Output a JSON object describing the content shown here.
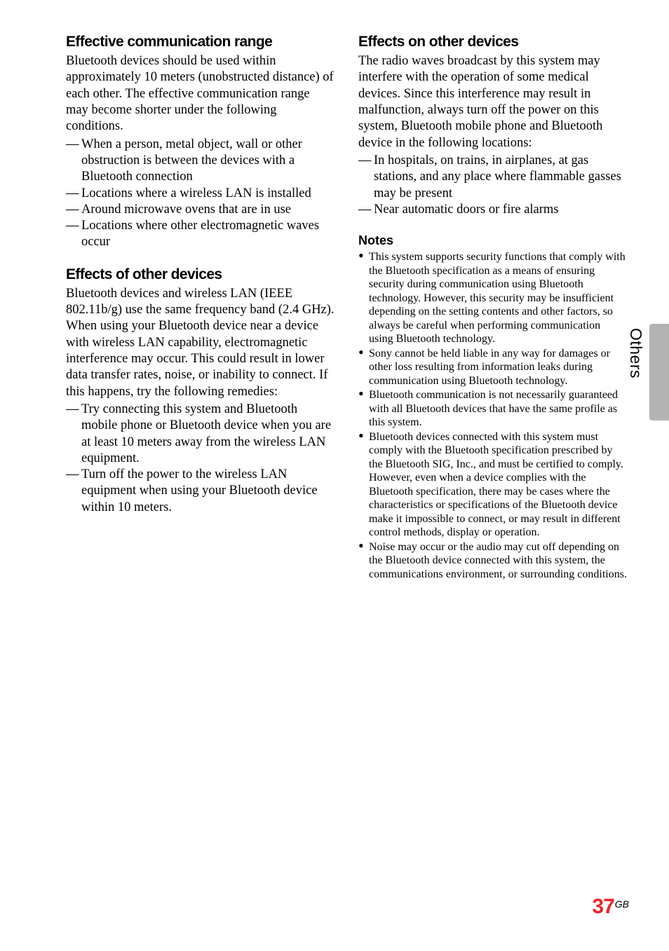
{
  "sideTab": {
    "label": "Others"
  },
  "pageNumber": {
    "num": "37",
    "suffix": "GB"
  },
  "left": {
    "s1": {
      "heading": "Effective communication range",
      "body": "Bluetooth devices should be used within approximately 10 meters (unobstructed distance) of each other. The effective communication range may become shorter under the following conditions.",
      "items": [
        "When a person, metal object, wall or other obstruction is between the devices with a Bluetooth connection",
        "Locations where a wireless LAN is installed",
        "Around microwave ovens that are in use",
        "Locations where other electromagnetic waves occur"
      ]
    },
    "s2": {
      "heading": "Effects of other devices",
      "body": "Bluetooth devices and wireless LAN (IEEE 802.11b/g) use the same frequency band (2.4 GHz). When using your Bluetooth device near a device with wireless LAN capability, electromagnetic interference may occur. This could result in lower data transfer rates, noise, or inability to connect. If this happens, try the following remedies:",
      "items": [
        "Try connecting this system and Bluetooth mobile phone or Bluetooth device when you are at least 10 meters away from the wireless LAN equipment.",
        "Turn off the power to the wireless LAN equipment when using your Bluetooth device within 10 meters."
      ]
    }
  },
  "right": {
    "s1": {
      "heading": "Effects on other devices",
      "body": "The radio waves broadcast by this system may interfere with the operation of some medical devices. Since this interference may result in malfunction, always turn off the power on this system, Bluetooth mobile phone and Bluetooth device in the following locations:",
      "items": [
        "In hospitals, on trains, in airplanes, at gas stations, and any place where flammable gasses may be present",
        "Near automatic doors or fire alarms"
      ]
    },
    "notes": {
      "heading": "Notes",
      "items": [
        "This system supports security functions that comply with the Bluetooth specification as a means of ensuring security during communication using Bluetooth technology. However, this security may be insufficient depending on the setting contents and other factors, so always be careful when performing communication using Bluetooth technology.",
        "Sony cannot be held liable in any way for damages or other loss resulting from information leaks during communication using Bluetooth technology.",
        "Bluetooth communication is not necessarily guaranteed with all Bluetooth devices that have the same profile as this system.",
        "Bluetooth devices connected with this system must comply with the Bluetooth specification prescribed by the Bluetooth SIG, Inc., and must be certified to comply. However, even when a device complies with the Bluetooth specification, there may be cases where the characteristics or specifications of the Bluetooth device make it impossible to connect, or may result in different control methods, display or operation.",
        "Noise may occur or the audio may cut off depending on the Bluetooth device connected with this system, the communications environment, or surrounding conditions."
      ]
    }
  }
}
